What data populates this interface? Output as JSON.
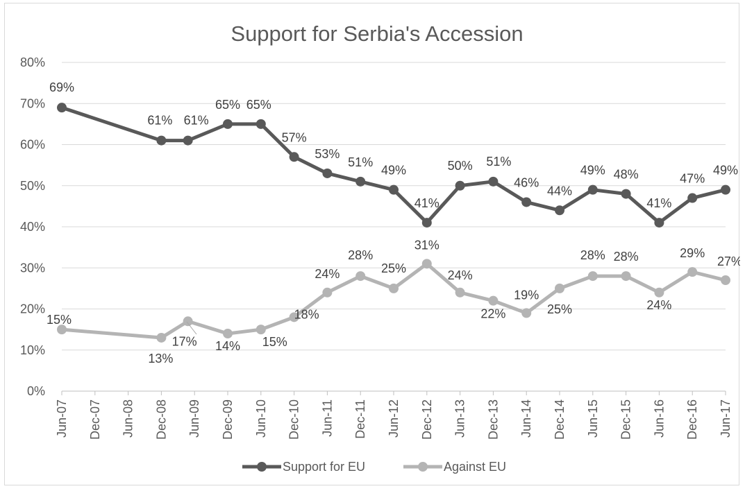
{
  "chart_data": {
    "type": "line",
    "title": "Support for Serbia's Accession",
    "xlabel": "",
    "ylabel": "",
    "categories": [
      "Jun-07",
      "Dec-07",
      "Jun-08",
      "Dec-08",
      "Jun-09",
      "Dec-09",
      "Jun-10",
      "Dec-10",
      "Jun-11",
      "Dec-11",
      "Jun-12",
      "Dec-12",
      "Jun-13",
      "Dec-13",
      "Jun-14",
      "Dec-14",
      "Jun-15",
      "Dec-15",
      "Jun-16",
      "Dec-16",
      "Jun-17"
    ],
    "ylim": [
      0,
      80
    ],
    "yticks": [
      "0%",
      "10%",
      "20%",
      "30%",
      "40%",
      "50%",
      "60%",
      "70%",
      "80%"
    ],
    "grid": true,
    "legend_position": "bottom",
    "series": [
      {
        "name": "Support for EU",
        "color": "#595959",
        "points": [
          {
            "x": 0,
            "y": 69,
            "label": "69%"
          },
          {
            "x": 3,
            "y": 61,
            "label": "61%"
          },
          {
            "x": 3.8,
            "y": 61,
            "label": "61%"
          },
          {
            "x": 5,
            "y": 65,
            "label": "65%"
          },
          {
            "x": 6,
            "y": 65,
            "label": "65%"
          },
          {
            "x": 7,
            "y": 57,
            "label": "57%"
          },
          {
            "x": 8,
            "y": 53,
            "label": "53%"
          },
          {
            "x": 9,
            "y": 51,
            "label": "51%"
          },
          {
            "x": 10,
            "y": 49,
            "label": "49%"
          },
          {
            "x": 11,
            "y": 41,
            "label": "41%"
          },
          {
            "x": 12,
            "y": 50,
            "label": "50%"
          },
          {
            "x": 13,
            "y": 51,
            "label": "51%"
          },
          {
            "x": 14,
            "y": 46,
            "label": "46%"
          },
          {
            "x": 15,
            "y": 44,
            "label": "44%"
          },
          {
            "x": 16,
            "y": 49,
            "label": "49%"
          },
          {
            "x": 17,
            "y": 48,
            "label": "48%"
          },
          {
            "x": 18,
            "y": 41,
            "label": "41%"
          },
          {
            "x": 19,
            "y": 47,
            "label": "47%"
          },
          {
            "x": 20,
            "y": 49,
            "label": "49%"
          }
        ]
      },
      {
        "name": "Against EU",
        "color": "#b4b4b4",
        "points": [
          {
            "x": 0,
            "y": 15,
            "label": "15%"
          },
          {
            "x": 3,
            "y": 13,
            "label": "13%"
          },
          {
            "x": 3.8,
            "y": 17,
            "label": "17%"
          },
          {
            "x": 5,
            "y": 14,
            "label": "14%"
          },
          {
            "x": 6,
            "y": 15,
            "label": "15%"
          },
          {
            "x": 7,
            "y": 18,
            "label": "18%"
          },
          {
            "x": 8,
            "y": 24,
            "label": "24%"
          },
          {
            "x": 9,
            "y": 28,
            "label": "28%"
          },
          {
            "x": 10,
            "y": 25,
            "label": "25%"
          },
          {
            "x": 11,
            "y": 31,
            "label": "31%"
          },
          {
            "x": 12,
            "y": 24,
            "label": "24%"
          },
          {
            "x": 13,
            "y": 22,
            "label": "22%"
          },
          {
            "x": 14,
            "y": 19,
            "label": "19%"
          },
          {
            "x": 15,
            "y": 25,
            "label": "25%"
          },
          {
            "x": 16,
            "y": 28,
            "label": "28%"
          },
          {
            "x": 17,
            "y": 28,
            "label": "28%"
          },
          {
            "x": 18,
            "y": 24,
            "label": "24%"
          },
          {
            "x": 19,
            "y": 29,
            "label": "29%"
          },
          {
            "x": 20,
            "y": 27,
            "label": "27%"
          }
        ]
      }
    ]
  }
}
